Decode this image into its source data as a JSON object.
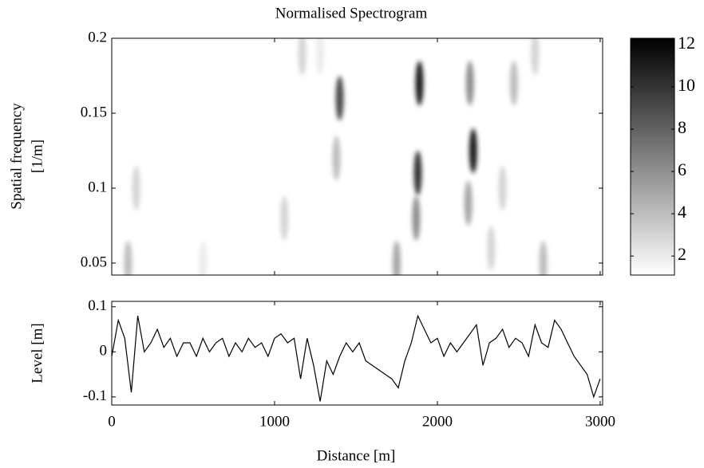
{
  "chart_data": [
    {
      "type": "heatmap",
      "title": "Normalised Spectrogram",
      "ylabel": [
        "Spatial frequency",
        "[1/m]"
      ],
      "xlim": [
        0,
        3015
      ],
      "xticks": [
        0,
        1000,
        2000,
        3000
      ],
      "ylim": [
        0.042,
        0.2
      ],
      "yticks": [
        0.05,
        0.1,
        0.15,
        0.2
      ],
      "colormap": "gray",
      "clim": [
        1.1,
        12.3
      ],
      "cticks": [
        2,
        4,
        6,
        8,
        10,
        12
      ],
      "x": [
        1400,
        1380,
        1890,
        1880,
        1870,
        2220,
        2200,
        2190,
        1170,
        1060,
        1750,
        2470,
        2600,
        2650,
        100,
        150,
        2400,
        1280,
        560,
        2330
      ],
      "y": [
        0.16,
        0.12,
        0.17,
        0.11,
        0.08,
        0.125,
        0.17,
        0.09,
        0.19,
        0.08,
        0.05,
        0.17,
        0.19,
        0.05,
        0.05,
        0.1,
        0.1,
        0.19,
        0.05,
        0.06
      ],
      "values": [
        9,
        4,
        11,
        10,
        6,
        11,
        6,
        5,
        3,
        3,
        5,
        4,
        3,
        4,
        4,
        3,
        3,
        2,
        2,
        3
      ]
    },
    {
      "type": "line",
      "ylabel": "Level [m]",
      "xlabel": "Distance [m]",
      "color": "#000000",
      "xlim": [
        0,
        3015
      ],
      "xticks": [
        0,
        1000,
        2000,
        3000
      ],
      "ylim": [
        -0.118,
        0.112
      ],
      "yticks": [
        -0.1,
        0,
        0.1
      ],
      "x": [
        0,
        40,
        80,
        120,
        160,
        200,
        240,
        280,
        320,
        360,
        400,
        440,
        480,
        520,
        560,
        600,
        640,
        680,
        720,
        760,
        800,
        840,
        880,
        920,
        960,
        1000,
        1040,
        1080,
        1120,
        1160,
        1200,
        1240,
        1280,
        1320,
        1360,
        1400,
        1440,
        1480,
        1520,
        1560,
        1600,
        1640,
        1680,
        1720,
        1760,
        1800,
        1840,
        1880,
        1920,
        1960,
        2000,
        2040,
        2080,
        2120,
        2160,
        2200,
        2240,
        2280,
        2320,
        2360,
        2400,
        2440,
        2480,
        2520,
        2560,
        2600,
        2640,
        2680,
        2720,
        2760,
        2800,
        2840,
        2880,
        2920,
        2960,
        3000
      ],
      "values": [
        -0.01,
        0.07,
        0.03,
        -0.09,
        0.08,
        0.0,
        0.02,
        0.05,
        0.01,
        0.03,
        -0.01,
        0.02,
        0.02,
        -0.01,
        0.03,
        0.0,
        0.02,
        0.03,
        -0.01,
        0.02,
        0.0,
        0.03,
        0.01,
        0.02,
        -0.01,
        0.03,
        0.04,
        0.02,
        0.03,
        -0.06,
        0.03,
        -0.03,
        -0.11,
        -0.02,
        -0.05,
        -0.01,
        0.02,
        0.0,
        0.02,
        -0.02,
        -0.03,
        -0.04,
        -0.05,
        -0.06,
        -0.08,
        -0.02,
        0.02,
        0.08,
        0.05,
        0.02,
        0.03,
        -0.01,
        0.02,
        0.0,
        0.02,
        0.04,
        0.06,
        -0.03,
        0.02,
        0.03,
        0.05,
        0.01,
        0.03,
        0.02,
        -0.01,
        0.06,
        0.02,
        0.01,
        0.07,
        0.05,
        0.02,
        -0.01,
        -0.03,
        -0.05,
        -0.1,
        -0.06
      ]
    }
  ]
}
